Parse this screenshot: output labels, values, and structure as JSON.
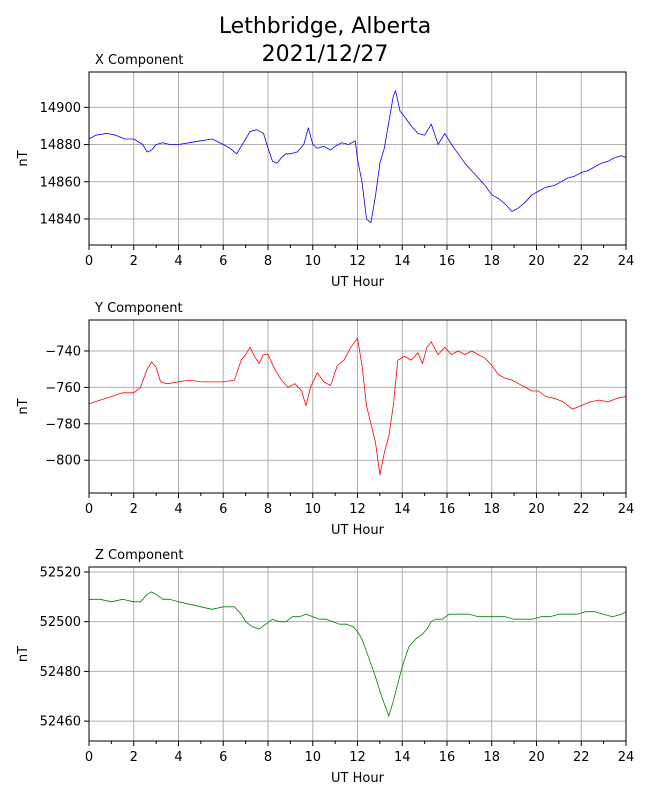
{
  "figure": {
    "title_line1": "Lethbridge, Alberta",
    "title_line2": "2021/12/27"
  },
  "chart_data": [
    {
      "type": "line",
      "title": "X Component",
      "xlabel": "UT Hour",
      "ylabel": "nT",
      "xlim": [
        0,
        24
      ],
      "ylim": [
        14826,
        14919
      ],
      "x_ticks": [
        0,
        2,
        4,
        6,
        8,
        10,
        12,
        14,
        16,
        18,
        20,
        22,
        24
      ],
      "y_ticks": [
        14840,
        14860,
        14880,
        14900
      ],
      "grid": true,
      "color": "#0000ff",
      "series": [
        {
          "x": [
            0,
            0.3,
            0.8,
            1.2,
            1.6,
            2.0,
            2.4,
            2.6,
            2.8,
            3.0,
            3.3,
            3.6,
            4.0,
            4.5,
            5.0,
            5.5,
            6.0,
            6.3,
            6.6,
            6.9,
            7.2,
            7.5,
            7.8,
            8.0,
            8.2,
            8.4,
            8.6,
            8.8,
            9.0,
            9.3,
            9.6,
            9.8,
            10.0,
            10.2,
            10.5,
            10.8,
            11.0,
            11.3,
            11.6,
            11.9,
            12.0,
            12.2,
            12.4,
            12.6,
            12.8,
            13.0,
            13.2,
            13.4,
            13.6,
            13.7,
            13.9,
            14.1,
            14.4,
            14.7,
            15.0,
            15.3,
            15.6,
            15.9,
            16.2,
            16.5,
            16.8,
            17.1,
            17.4,
            17.7,
            18.0,
            18.3,
            18.6,
            18.9,
            19.2,
            19.5,
            19.8,
            20.1,
            20.4,
            20.8,
            21.1,
            21.4,
            21.7,
            22.0,
            22.3,
            22.6,
            22.9,
            23.2,
            23.5,
            23.8,
            24.0
          ],
          "y": [
            14883,
            14885,
            14886,
            14885,
            14883,
            14883,
            14880,
            14876,
            14877,
            14880,
            14881,
            14880,
            14880,
            14881,
            14882,
            14883,
            14880,
            14878,
            14875,
            14881,
            14887,
            14888,
            14886,
            14878,
            14871,
            14870,
            14873,
            14875,
            14875,
            14876,
            14880,
            14889,
            14880,
            14878,
            14879,
            14877,
            14879,
            14881,
            14880,
            14882,
            14872,
            14860,
            14840,
            14838,
            14852,
            14870,
            14878,
            14892,
            14906,
            14909,
            14898,
            14895,
            14890,
            14886,
            14885,
            14891,
            14880,
            14886,
            14880,
            14875,
            14870,
            14866,
            14862,
            14858,
            14853,
            14851,
            14848,
            14844,
            14846,
            14849,
            14853,
            14855,
            14857,
            14858,
            14860,
            14862,
            14863,
            14865,
            14866,
            14868,
            14870,
            14871,
            14873,
            14874,
            14873
          ]
        }
      ]
    },
    {
      "type": "line",
      "title": "Y Component",
      "xlabel": "UT Hour",
      "ylabel": "nT",
      "xlim": [
        0,
        24
      ],
      "ylim": [
        -818,
        -723
      ],
      "x_ticks": [
        0,
        2,
        4,
        6,
        8,
        10,
        12,
        14,
        16,
        18,
        20,
        22,
        24
      ],
      "y_ticks": [
        -800,
        -780,
        -760,
        -740
      ],
      "grid": true,
      "color": "#ff0000",
      "series": [
        {
          "x": [
            0,
            0.5,
            1.0,
            1.5,
            2.0,
            2.3,
            2.6,
            2.8,
            3.0,
            3.2,
            3.5,
            4.0,
            4.5,
            5.0,
            5.5,
            6.0,
            6.5,
            6.8,
            7.0,
            7.2,
            7.4,
            7.6,
            7.8,
            8.0,
            8.3,
            8.6,
            8.9,
            9.2,
            9.5,
            9.7,
            9.9,
            10.2,
            10.5,
            10.8,
            11.1,
            11.4,
            11.7,
            12.0,
            12.2,
            12.4,
            12.6,
            12.8,
            13.0,
            13.2,
            13.4,
            13.6,
            13.8,
            14.1,
            14.4,
            14.7,
            14.9,
            15.1,
            15.3,
            15.6,
            15.9,
            16.2,
            16.5,
            16.8,
            17.1,
            17.4,
            17.7,
            18.0,
            18.3,
            18.6,
            18.9,
            19.2,
            19.5,
            19.8,
            20.1,
            20.4,
            20.8,
            21.2,
            21.6,
            22.0,
            22.4,
            22.8,
            23.2,
            23.6,
            24.0
          ],
          "y": [
            -769,
            -767,
            -765,
            -763,
            -763,
            -760,
            -750,
            -746,
            -749,
            -757,
            -758,
            -757,
            -756,
            -757,
            -757,
            -757,
            -756,
            -745,
            -742,
            -738,
            -743,
            -747,
            -742,
            -742,
            -750,
            -756,
            -760,
            -758,
            -762,
            -770,
            -760,
            -752,
            -757,
            -759,
            -748,
            -745,
            -738,
            -733,
            -748,
            -770,
            -780,
            -790,
            -808,
            -796,
            -787,
            -770,
            -745,
            -743,
            -745,
            -741,
            -747,
            -738,
            -735,
            -742,
            -738,
            -742,
            -740,
            -742,
            -740,
            -742,
            -744,
            -748,
            -753,
            -755,
            -756,
            -758,
            -760,
            -762,
            -762,
            -765,
            -766,
            -768,
            -772,
            -770,
            -768,
            -767,
            -768,
            -766,
            -765
          ]
        }
      ]
    },
    {
      "type": "line",
      "title": "Z Component",
      "xlabel": "UT Hour",
      "ylabel": "nT",
      "xlim": [
        0,
        24
      ],
      "ylim": [
        52452,
        52522
      ],
      "x_ticks": [
        0,
        2,
        4,
        6,
        8,
        10,
        12,
        14,
        16,
        18,
        20,
        22,
        24
      ],
      "y_ticks": [
        52460,
        52480,
        52500,
        52520
      ],
      "grid": true,
      "color": "#008000",
      "series": [
        {
          "x": [
            0,
            0.5,
            1.0,
            1.5,
            2.0,
            2.3,
            2.6,
            2.8,
            3.0,
            3.3,
            3.6,
            4.0,
            4.5,
            5.0,
            5.5,
            6.0,
            6.5,
            6.8,
            7.0,
            7.3,
            7.6,
            7.9,
            8.2,
            8.5,
            8.8,
            9.1,
            9.4,
            9.7,
            10.0,
            10.3,
            10.6,
            10.9,
            11.2,
            11.5,
            11.8,
            12.0,
            12.2,
            12.4,
            12.6,
            12.8,
            13.0,
            13.2,
            13.4,
            13.6,
            13.8,
            14.0,
            14.3,
            14.6,
            14.9,
            15.1,
            15.3,
            15.5,
            15.8,
            16.1,
            16.4,
            16.7,
            17.0,
            17.4,
            17.8,
            18.2,
            18.6,
            19.0,
            19.4,
            19.8,
            20.2,
            20.6,
            21.0,
            21.4,
            21.8,
            22.2,
            22.6,
            23.0,
            23.4,
            23.8,
            24.0
          ],
          "y": [
            52509,
            52509,
            52508,
            52509,
            52508,
            52508,
            52511,
            52512,
            52511,
            52509,
            52509,
            52508,
            52507,
            52506,
            52505,
            52506,
            52506,
            52503,
            52500,
            52498,
            52497,
            52499,
            52501,
            52500,
            52500,
            52502,
            52502,
            52503,
            52502,
            52501,
            52501,
            52500,
            52499,
            52499,
            52498,
            52496,
            52493,
            52488,
            52483,
            52478,
            52472,
            52467,
            52462,
            52468,
            52475,
            52482,
            52490,
            52493,
            52495,
            52497,
            52500,
            52501,
            52501,
            52503,
            52503,
            52503,
            52503,
            52502,
            52502,
            52502,
            52502,
            52501,
            52501,
            52501,
            52502,
            52502,
            52503,
            52503,
            52503,
            52504,
            52504,
            52503,
            52502,
            52503,
            52504
          ]
        }
      ]
    }
  ]
}
